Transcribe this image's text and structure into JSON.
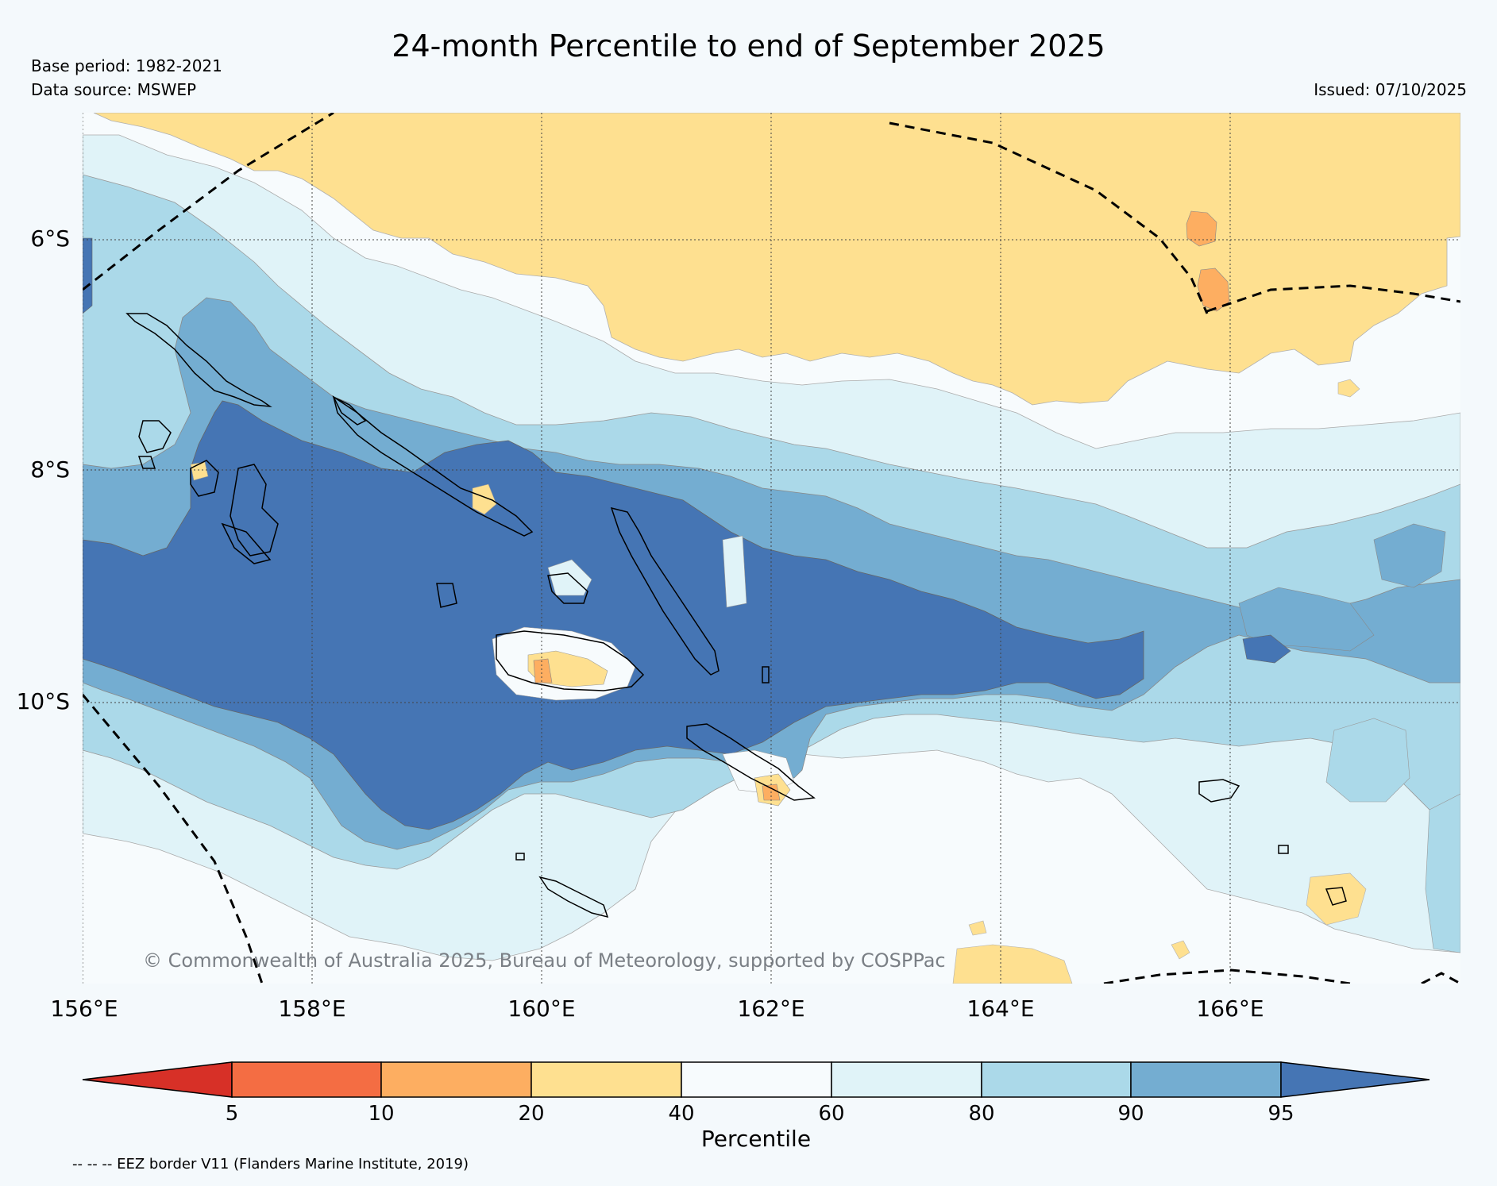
{
  "title": "24-month Percentile to end of September 2025",
  "base_period": "Base period: 1982-2021",
  "data_source": "Data source: MSWEP",
  "issued": "Issued: 07/10/2025",
  "copyright": "© Commonwealth of Australia 2025, Bureau of Meteorology, supported by COSPPac",
  "eez_note": "-- -- -- EEZ border V11 (Flanders Marine Institute, 2019)",
  "lat_labels": [
    "6°S",
    "8°S",
    "10°S"
  ],
  "lon_labels": [
    "156°E",
    "158°E",
    "160°E",
    "162°E",
    "164°E",
    "166°E"
  ],
  "colorbar": {
    "label": "Percentile",
    "ticks": [
      "5",
      "10",
      "20",
      "40",
      "60",
      "80",
      "90",
      "95"
    ],
    "colors": {
      "below_5": "#d73027",
      "5_10": "#f46d43",
      "10_20": "#fdae61",
      "20_40": "#fee090",
      "40_60": "#f7fbfd",
      "60_80": "#e0f3f8",
      "80_90": "#abd9e9",
      "90_95": "#74add1",
      "above_95": "#4575b4"
    }
  }
}
